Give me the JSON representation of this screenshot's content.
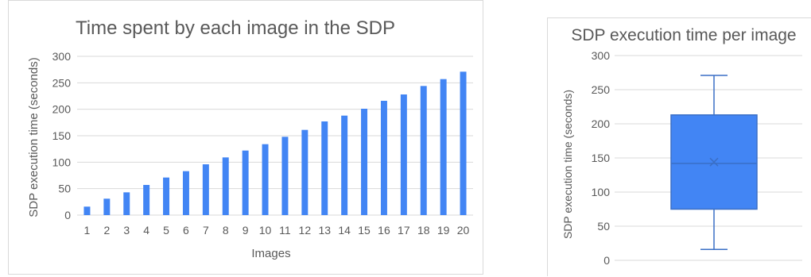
{
  "chart_data": [
    {
      "type": "bar",
      "title": "Time spent by each image in the SDP",
      "xlabel": "Images",
      "ylabel": "SDP execution time (seconds)",
      "categories": [
        "1",
        "2",
        "3",
        "4",
        "5",
        "6",
        "7",
        "8",
        "9",
        "10",
        "11",
        "12",
        "13",
        "14",
        "15",
        "16",
        "17",
        "18",
        "19",
        "20"
      ],
      "values": [
        16,
        31,
        43,
        57,
        71,
        83,
        96,
        109,
        122,
        134,
        148,
        161,
        177,
        188,
        201,
        216,
        228,
        244,
        257,
        271
      ],
      "ylim": [
        0,
        300
      ],
      "yticks": [
        "0",
        "50",
        "100",
        "150",
        "200",
        "250",
        "300"
      ],
      "grid": true,
      "color": "#4285f4"
    },
    {
      "type": "box",
      "title": "SDP execution time per image",
      "ylabel": "SDP execution time (seconds)",
      "min": 16,
      "q1": 75,
      "median": 142,
      "mean": 144,
      "q3": 213,
      "max": 271,
      "ylim": [
        0,
        300
      ],
      "yticks": [
        "0",
        "50",
        "100",
        "150",
        "200",
        "250",
        "300"
      ],
      "grid": true,
      "fill_color": "#4285f4",
      "edge_color": "#3a6fc6"
    }
  ]
}
